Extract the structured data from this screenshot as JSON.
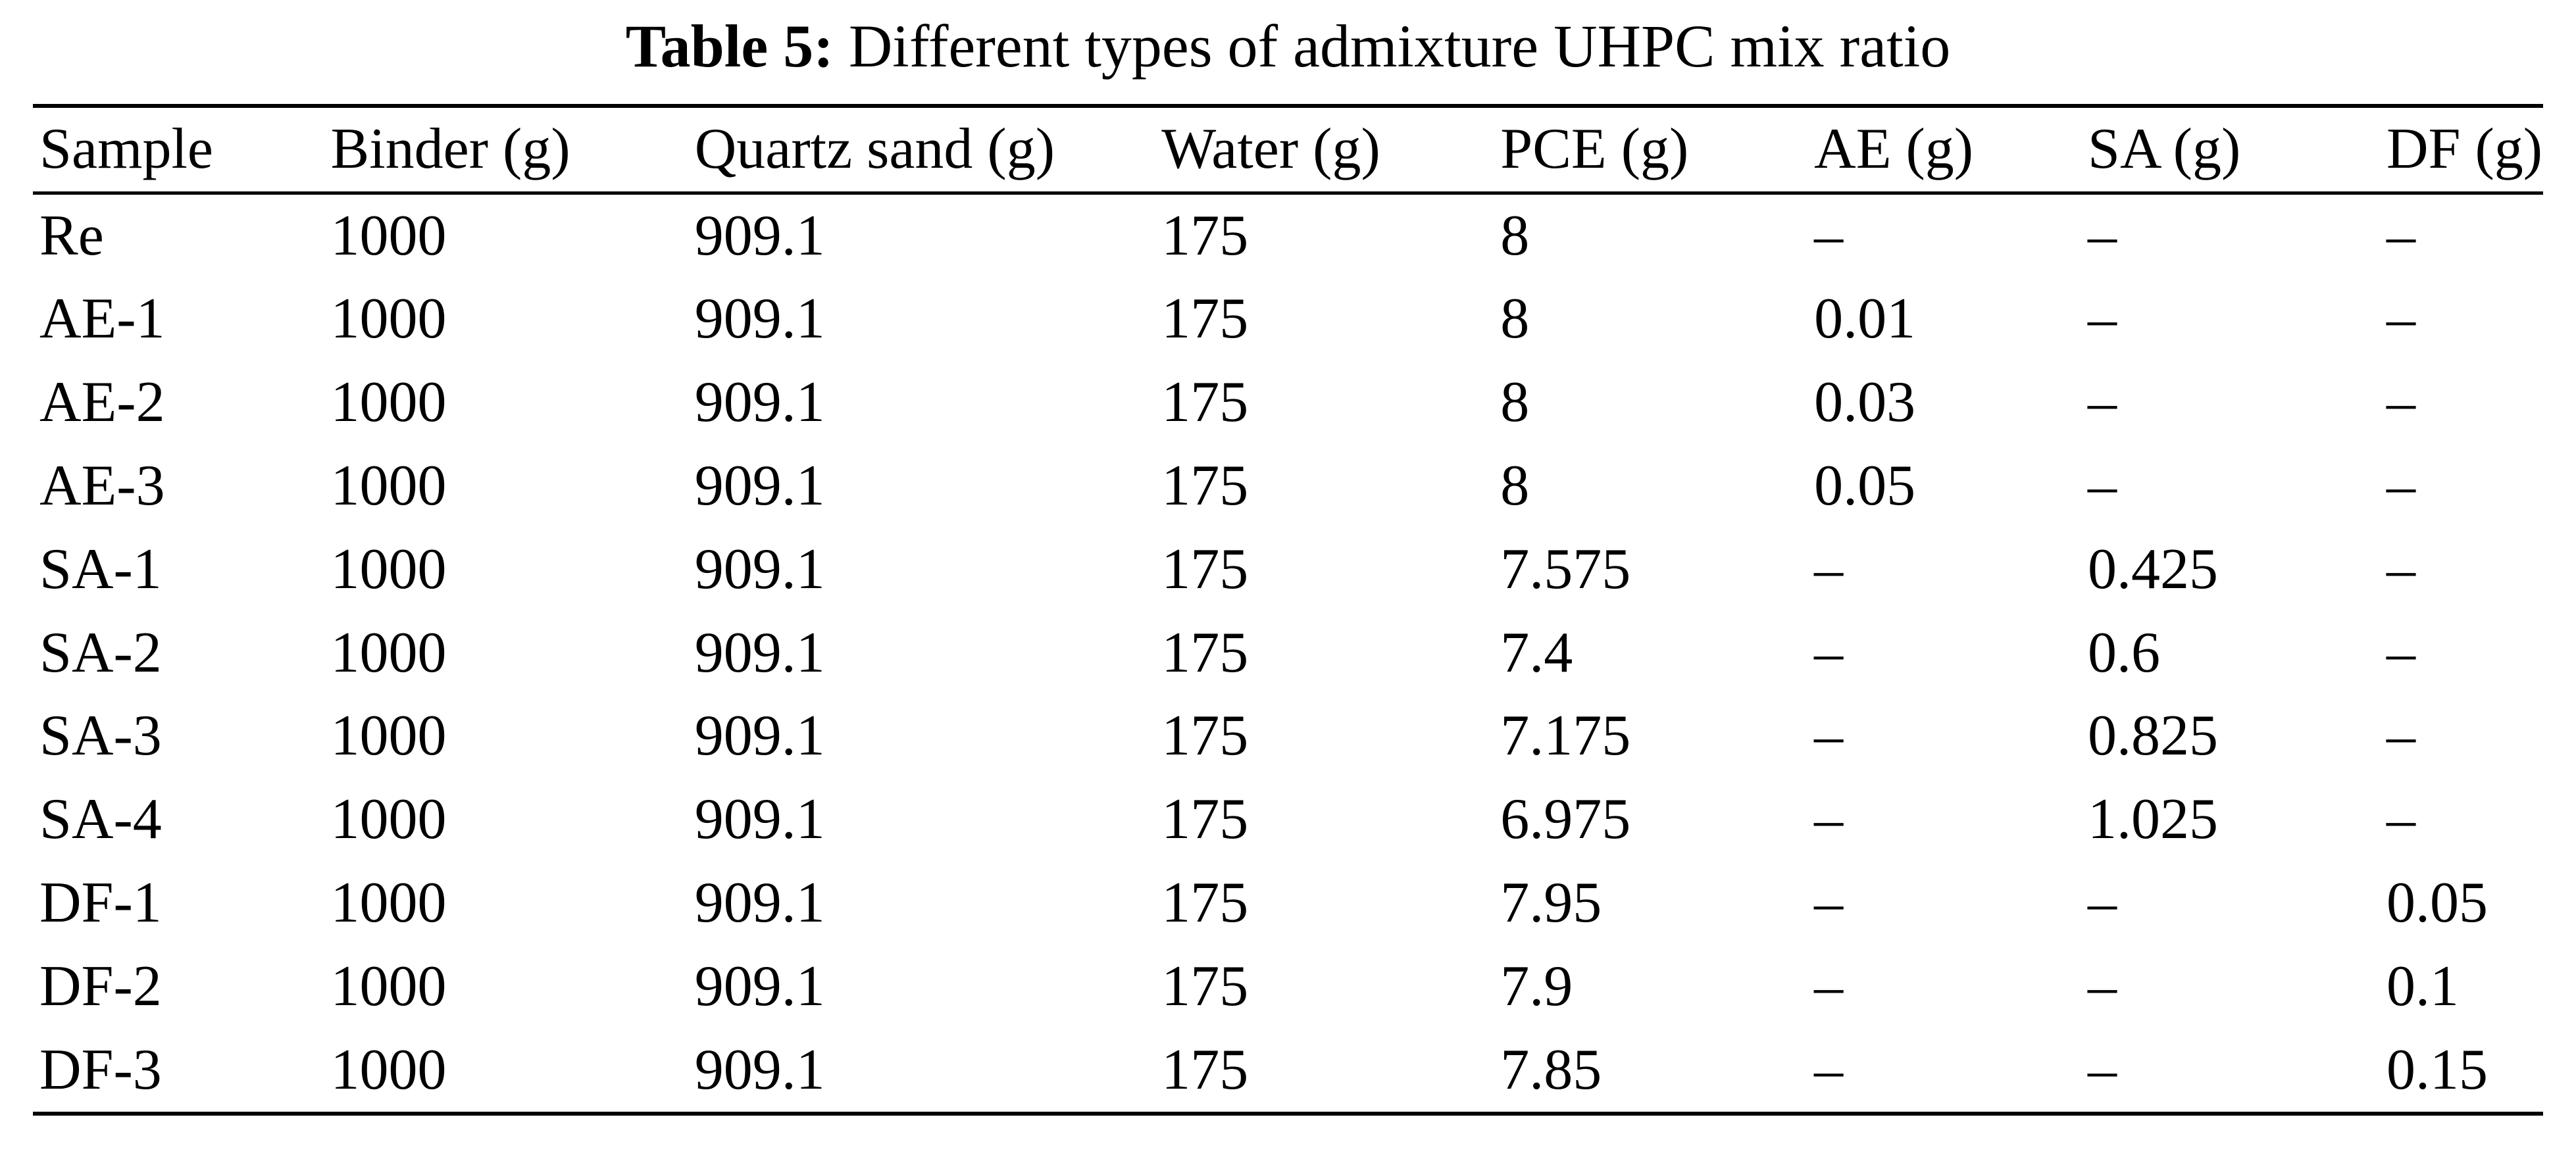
{
  "table": {
    "caption": {
      "label": "Table 5:",
      "text": "Different types of admixture UHPC mix ratio"
    },
    "columns": [
      "Sample",
      "Binder (g)",
      "Quartz sand (g)",
      "Water (g)",
      "PCE (g)",
      "AE (g)",
      "SA (g)",
      "DF (g)"
    ],
    "rows": [
      [
        "Re",
        "1000",
        "909.1",
        "175",
        "8",
        "–",
        "–",
        "–"
      ],
      [
        "AE-1",
        "1000",
        "909.1",
        "175",
        "8",
        "0.01",
        "–",
        "–"
      ],
      [
        "AE-2",
        "1000",
        "909.1",
        "175",
        "8",
        "0.03",
        "–",
        "–"
      ],
      [
        "AE-3",
        "1000",
        "909.1",
        "175",
        "8",
        "0.05",
        "–",
        "–"
      ],
      [
        "SA-1",
        "1000",
        "909.1",
        "175",
        "7.575",
        "–",
        "0.425",
        "–"
      ],
      [
        "SA-2",
        "1000",
        "909.1",
        "175",
        "7.4",
        "–",
        "0.6",
        "–"
      ],
      [
        "SA-3",
        "1000",
        "909.1",
        "175",
        "7.175",
        "–",
        "0.825",
        "–"
      ],
      [
        "SA-4",
        "1000",
        "909.1",
        "175",
        "6.975",
        "–",
        "1.025",
        "–"
      ],
      [
        "DF-1",
        "1000",
        "909.1",
        "175",
        "7.95",
        "–",
        "–",
        "0.05"
      ],
      [
        "DF-2",
        "1000",
        "909.1",
        "175",
        "7.9",
        "–",
        "–",
        "0.1"
      ],
      [
        "DF-3",
        "1000",
        "909.1",
        "175",
        "7.85",
        "–",
        "–",
        "0.15"
      ]
    ]
  }
}
